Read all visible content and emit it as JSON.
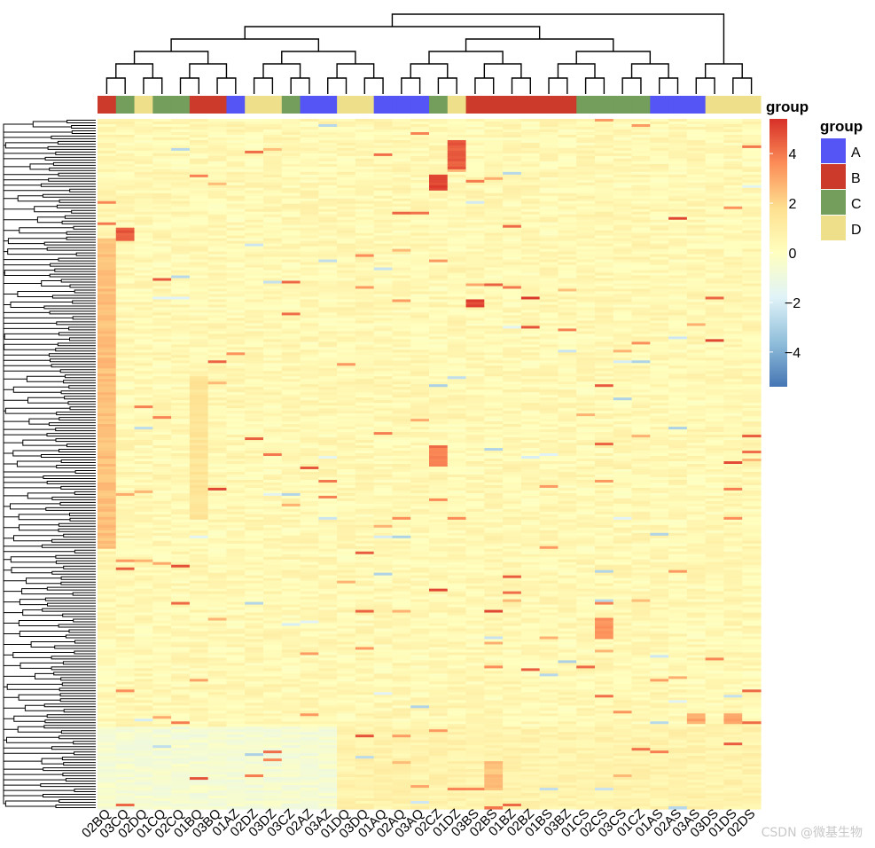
{
  "chart_data": {
    "type": "heatmap",
    "title": "",
    "annotation_title": "group",
    "legend": {
      "group_title": "group",
      "groups": [
        {
          "name": "A",
          "color": "#5555F5"
        },
        {
          "name": "B",
          "color": "#CC3A2C"
        },
        {
          "name": "C",
          "color": "#739E5B"
        },
        {
          "name": "D",
          "color": "#EEE08A"
        }
      ]
    },
    "colorbar": {
      "range": [
        -5.4,
        5.4
      ],
      "ticks": [
        -4,
        -2,
        0,
        2,
        4
      ],
      "tick_labels": [
        "−4",
        "−2",
        "0",
        "2",
        "4"
      ],
      "colors": [
        "#4575b4",
        "#91bfdb",
        "#e0f3f8",
        "#ffffbf",
        "#fee090",
        "#fc8d59",
        "#d73027"
      ]
    },
    "columns": [
      {
        "label": "02BQ",
        "group": "B"
      },
      {
        "label": "03CQ",
        "group": "C"
      },
      {
        "label": "02DQ",
        "group": "D"
      },
      {
        "label": "01CQ",
        "group": "C"
      },
      {
        "label": "02CQ",
        "group": "C"
      },
      {
        "label": "01BQ",
        "group": "B"
      },
      {
        "label": "03BQ",
        "group": "B"
      },
      {
        "label": "01AZ",
        "group": "A"
      },
      {
        "label": "02DZ",
        "group": "D"
      },
      {
        "label": "03DZ",
        "group": "D"
      },
      {
        "label": "03CZ",
        "group": "C"
      },
      {
        "label": "02AZ",
        "group": "A"
      },
      {
        "label": "03AZ",
        "group": "A"
      },
      {
        "label": "01DQ",
        "group": "D"
      },
      {
        "label": "03DQ",
        "group": "D"
      },
      {
        "label": "01AQ",
        "group": "A"
      },
      {
        "label": "02AQ",
        "group": "A"
      },
      {
        "label": "03AQ",
        "group": "A"
      },
      {
        "label": "02CZ",
        "group": "C"
      },
      {
        "label": "01DZ",
        "group": "D"
      },
      {
        "label": "03BS",
        "group": "B"
      },
      {
        "label": "02BS",
        "group": "B"
      },
      {
        "label": "01BZ",
        "group": "B"
      },
      {
        "label": "02BZ",
        "group": "B"
      },
      {
        "label": "01BS",
        "group": "B"
      },
      {
        "label": "03BZ",
        "group": "B"
      },
      {
        "label": "01CS",
        "group": "C"
      },
      {
        "label": "02CS",
        "group": "C"
      },
      {
        "label": "03CS",
        "group": "C"
      },
      {
        "label": "01CZ",
        "group": "C"
      },
      {
        "label": "01AS",
        "group": "A"
      },
      {
        "label": "02AS",
        "group": "A"
      },
      {
        "label": "03AS",
        "group": "A"
      },
      {
        "label": "03DS",
        "group": "D"
      },
      {
        "label": "01DS",
        "group": "D"
      },
      {
        "label": "02DS",
        "group": "D"
      }
    ],
    "notable_blocks": [
      {
        "col": 0,
        "row_from": 0.17,
        "row_to": 0.62,
        "value": 2.5
      },
      {
        "col": 1,
        "row_from": 0.155,
        "row_to": 0.175,
        "value": 4.6
      },
      {
        "col": 5,
        "row_from": 0.37,
        "row_to": 0.58,
        "value": 1.5
      },
      {
        "col": 18,
        "row_from": 0.08,
        "row_to": 0.1,
        "value": 5.0
      },
      {
        "col": 19,
        "row_from": 0.03,
        "row_to": 0.07,
        "value": 4.5
      },
      {
        "col": 18,
        "row_from": 0.47,
        "row_to": 0.5,
        "value": 4.0
      },
      {
        "col": 27,
        "row_from": 0.72,
        "row_to": 0.75,
        "value": 3.5
      },
      {
        "col": 32,
        "row_from": 0.86,
        "row_to": 0.875,
        "value": 3.0
      },
      {
        "col": 34,
        "row_from": 0.86,
        "row_to": 0.875,
        "value": 3.0
      },
      {
        "col": 21,
        "row_from": 0.93,
        "row_to": 0.97,
        "value": 2.5
      },
      {
        "col": 20,
        "row_from": 0.26,
        "row_to": 0.27,
        "value": 5.0
      },
      {
        "col": 23,
        "row_from": 0.255,
        "row_to": 0.26,
        "value": 5.2
      }
    ],
    "bottom_block_values": {
      "cols_0_12": -0.6,
      "cols_13_35": 0.7
    }
  },
  "watermark": "CSDN @微基生物"
}
